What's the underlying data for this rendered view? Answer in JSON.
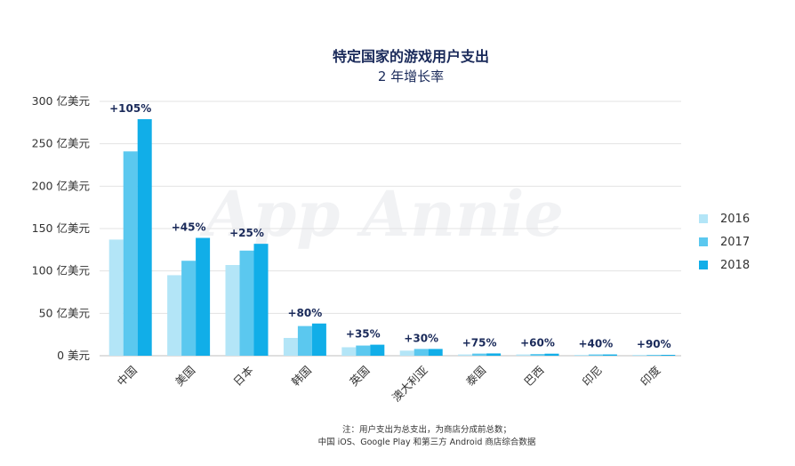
{
  "chart_data": {
    "type": "bar",
    "title": "特定国家的游戏用户支出",
    "subtitle": "2 年增长率",
    "categories": [
      "中国",
      "美国",
      "日本",
      "韩国",
      "英国",
      "澳大利亚",
      "泰国",
      "巴西",
      "印尼",
      "印度"
    ],
    "series": [
      {
        "name": "2016",
        "color": "#b3e5f7",
        "values": [
          137,
          95,
          107,
          21,
          10,
          6,
          1.5,
          1.5,
          1,
          0.5
        ]
      },
      {
        "name": "2017",
        "color": "#5bc8ef",
        "values": [
          241,
          112,
          124,
          35,
          12,
          8,
          2.5,
          2,
          1.5,
          0.8
        ]
      },
      {
        "name": "2018",
        "color": "#11aee8",
        "values": [
          279,
          139,
          132,
          38,
          13,
          8,
          2.7,
          2.4,
          1.5,
          1
        ]
      }
    ],
    "growth_labels": [
      "+105%",
      "+45%",
      "+25%",
      "+80%",
      "+35%",
      "+30%",
      "+75%",
      "+60%",
      "+40%",
      "+90%"
    ],
    "y_ticks": [
      0,
      50,
      100,
      150,
      200,
      250,
      300
    ],
    "y_tick_labels": [
      "0 美元",
      "50 亿美元",
      "100 亿美元",
      "150 亿美元",
      "200 亿美元",
      "250 亿美元",
      "300 亿美元"
    ],
    "ylim": [
      0,
      300
    ],
    "grid": true,
    "legend_position": "right"
  },
  "watermark": "App Annie",
  "note": {
    "line1": "注：用户支出为总支出，为商店分成前总数；",
    "line2": "中国 iOS、Google Play 和第三方 Android 商店综合数据"
  }
}
